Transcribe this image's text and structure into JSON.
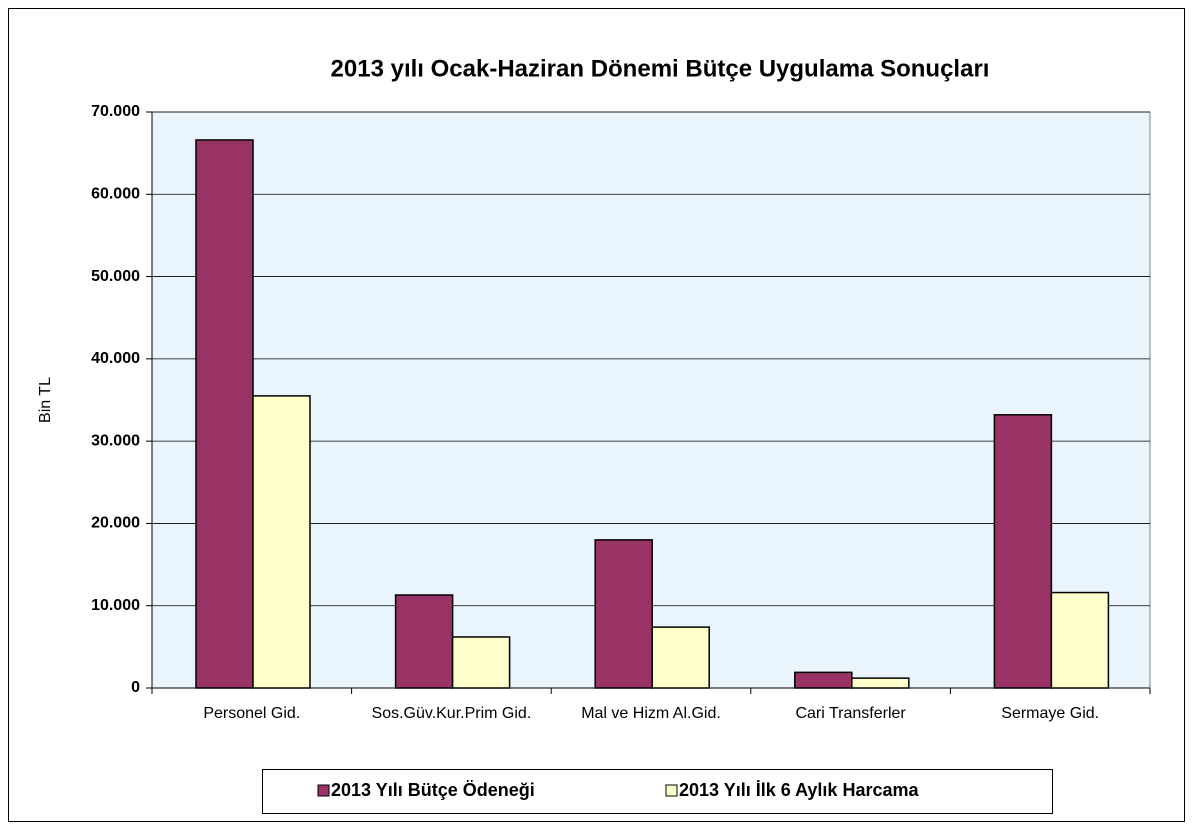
{
  "chart_data": {
    "type": "bar",
    "title": "2013 yılı Ocak-Haziran Dönemi Bütçe Uygulama Sonuçları",
    "y_label": "Bin TL",
    "categories": [
      "Personel Gid.",
      "Sos.Güv.Kur.Prim Gid.",
      "Mal ve Hizm Al.Gid.",
      "Cari Transferler",
      "Sermaye Gid."
    ],
    "series": [
      {
        "name": "2013 Yılı Bütçe Ödeneği",
        "color": "#993366",
        "values": [
          66600,
          11300,
          18000,
          1900,
          33200
        ]
      },
      {
        "name": "2013 Yılı İlk 6 Aylık Harcama",
        "color": "#ffffcc",
        "values": [
          35500,
          6200,
          7400,
          1200,
          11600
        ]
      }
    ],
    "ylim": [
      0,
      70000
    ],
    "yticks": [
      0,
      {
        "value": 10000,
        "label": "10.000"
      },
      {
        "value": 20000,
        "label": "20.000"
      },
      {
        "value": 30000,
        "label": "30.000"
      },
      {
        "value": 40000,
        "label": "40.000"
      },
      {
        "value": 50000,
        "label": "50.000"
      },
      {
        "value": 60000,
        "label": "60.000"
      },
      {
        "value": 70000,
        "label": "70.000"
      }
    ],
    "grid": true,
    "legend": "bottom"
  }
}
